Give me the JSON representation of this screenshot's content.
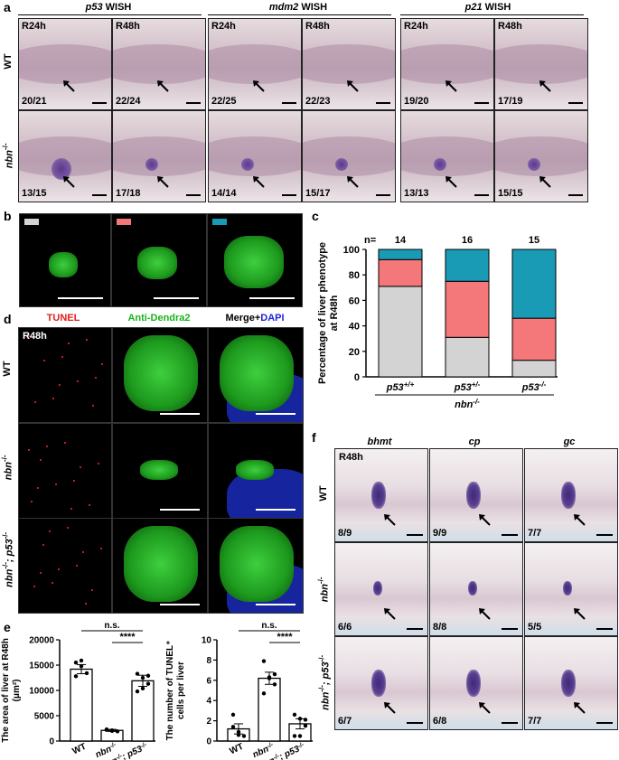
{
  "panel_labels": {
    "a": "a",
    "b": "b",
    "c": "c",
    "d": "d",
    "e": "e",
    "f": "f"
  },
  "panel_a": {
    "headers": [
      {
        "gene": "p53",
        "suffix": " WISH"
      },
      {
        "gene": "mdm2",
        "suffix": " WISH"
      },
      {
        "gene": "p21",
        "suffix": " WISH"
      }
    ],
    "row_labels": {
      "wt": "WT",
      "mut": "nbn",
      "mut_sup": "-/-"
    },
    "timepoints": [
      "R24h",
      "R48h",
      "R24h",
      "R48h",
      "R24h",
      "R48h"
    ],
    "wt_counts": [
      "20/21",
      "22/24",
      "22/25",
      "22/23",
      "19/20",
      "17/19"
    ],
    "mut_counts": [
      "13/15",
      "17/18",
      "14/14",
      "15/17",
      "13/13",
      "15/15"
    ]
  },
  "panel_b": {
    "colors": [
      "#d3d3d3",
      "#f4777a",
      "#1a9bb5"
    ]
  },
  "panel_c": {
    "n_label": "n=",
    "x_group_label": "nbn",
    "x_group_sup": "-/-",
    "chart_data": {
      "type": "bar",
      "stacked": true,
      "categories": [
        "p53+/+",
        "p53+/-",
        "p53-/-"
      ],
      "category_display": [
        {
          "base": "p53",
          "sup": "+/+"
        },
        {
          "base": "p53",
          "sup": "+/-"
        },
        {
          "base": "p53",
          "sup": "-/-"
        }
      ],
      "n": [
        "14",
        "16",
        "15"
      ],
      "series": [
        {
          "color": "#d3d3d3",
          "values": [
            71,
            31,
            13
          ]
        },
        {
          "color": "#f4777a",
          "values": [
            21,
            44,
            33
          ]
        },
        {
          "color": "#1a9bb5",
          "values": [
            8,
            25,
            54
          ]
        }
      ],
      "ylabel": "Percentage of liver phenotype at R48h",
      "ylabel_lines": [
        "Percentage of liver phenotype",
        "at R48h"
      ],
      "ylim": [
        0,
        100
      ],
      "yticks": [
        "0",
        "20",
        "40",
        "60",
        "80",
        "100"
      ]
    }
  },
  "panel_d": {
    "col_headers": {
      "tunel": "TUNEL",
      "dendra": "Anti-Dendra2",
      "merge": "Merge+",
      "dapi": "DAPI"
    },
    "timepoint": "R48h",
    "rows": [
      {
        "base": "WT",
        "sup": "",
        "extra": ""
      },
      {
        "base": "nbn",
        "sup": "-/-",
        "extra": ""
      },
      {
        "base": "nbn",
        "sup": "-/-",
        "extra": "; p53",
        "sup2": "-/-"
      }
    ]
  },
  "panel_e": {
    "chart_data": [
      {
        "type": "bar",
        "categories": [
          "WT",
          "nbn-/-",
          "nbn-/-; p53-/-"
        ],
        "category_display": [
          {
            "base": "WT",
            "sup": ""
          },
          {
            "base": "nbn",
            "sup": "-/-"
          },
          {
            "base": "nbn",
            "sup": "-/-",
            "extra": "; p53",
            "sup2": "-/-"
          }
        ],
        "values": [
          14200,
          2100,
          11900
        ],
        "errors": [
          900,
          200,
          1100
        ],
        "points": [
          [
            15500,
            14800,
            13400,
            12800,
            15900
          ],
          [
            2300,
            2000,
            1900,
            2200,
            2100
          ],
          [
            13300,
            12500,
            11300,
            9800,
            10400,
            12900
          ]
        ],
        "ylabel": "The area of liver at R48h (μm²)",
        "ylabel_lines": [
          "The area of liver at R48h",
          "(μm²)"
        ],
        "ylim": [
          0,
          20000
        ],
        "yticks": [
          "0",
          "5000",
          "10000",
          "15000",
          "20000"
        ],
        "annotations": [
          "n.s.",
          "****"
        ]
      },
      {
        "type": "bar",
        "categories": [
          "WT",
          "nbn-/-",
          "nbn-/-; p53-/-"
        ],
        "category_display": [
          {
            "base": "WT",
            "sup": ""
          },
          {
            "base": "nbn",
            "sup": "-/-"
          },
          {
            "base": "nbn",
            "sup": "-/-",
            "extra": "; p53",
            "sup2": "-/-"
          }
        ],
        "values": [
          1.2,
          6.2,
          1.7
        ],
        "errors": [
          0.5,
          0.6,
          0.5
        ],
        "points": [
          [
            2.6,
            0.6,
            0.5,
            1.4,
            0.9
          ],
          [
            7.9,
            6.2,
            5.6,
            4.7,
            6.3,
            6.6
          ],
          [
            2.6,
            2.2,
            1.5,
            0.5,
            0.5,
            2.1
          ]
        ],
        "ylabel": "The number of TUNEL+ cells per liver",
        "ylabel_lines": [
          "The number of TUNEL⁺",
          "cells per liver"
        ],
        "ylim": [
          0,
          10
        ],
        "yticks": [
          "0",
          "2",
          "4",
          "6",
          "8",
          "10"
        ],
        "annotations": [
          "n.s.",
          "****"
        ]
      }
    ]
  },
  "panel_f": {
    "genes": [
      "bhmt",
      "cp",
      "gc"
    ],
    "timepoint": "R48h",
    "rows": [
      {
        "base": "WT",
        "sup": "",
        "extra": "",
        "counts": [
          "8/9",
          "9/9",
          "7/7"
        ]
      },
      {
        "base": "nbn",
        "sup": "-/-",
        "extra": "",
        "counts": [
          "6/6",
          "8/8",
          "5/5"
        ]
      },
      {
        "base": "nbn",
        "sup": "-/-",
        "extra": "; p53",
        "sup2": "-/-",
        "counts": [
          "6/7",
          "6/8",
          "7/7"
        ]
      }
    ]
  }
}
